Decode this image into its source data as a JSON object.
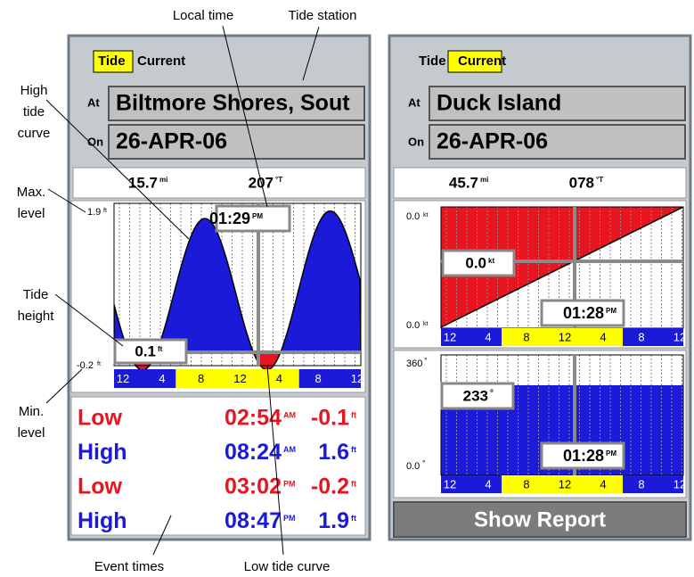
{
  "annotations": {
    "local_time": "Local time",
    "tide_station": "Tide station",
    "high_tide_curve": [
      "High",
      "tide",
      "curve"
    ],
    "max_level": [
      "Max.",
      "level"
    ],
    "tide_height": [
      "Tide",
      "height"
    ],
    "min_level": [
      "Min.",
      "level"
    ],
    "event_times": "Event times",
    "low_tide_curve": "Low tide curve"
  },
  "tide_page": {
    "tabs": [
      "Tide",
      "Current"
    ],
    "at_label": "At",
    "station": "Biltmore Shores, Sout",
    "on_label": "On",
    "date": "26-APR-06",
    "distance": "15.7",
    "distance_unit": "mi",
    "bearing": "207",
    "bearing_unit": "°T",
    "max_level": "1.9",
    "min_level": "-0.2",
    "level_unit": "ft",
    "cursor_time": "01:29",
    "cursor_time_suffix": "PM",
    "cursor_height": "0.1",
    "hours": [
      "12",
      "4",
      "8",
      "12",
      "4",
      "8",
      "12"
    ],
    "events": [
      {
        "type": "Low",
        "time": "02:54",
        "suffix": "AM",
        "height": "-0.1",
        "unit": "ft"
      },
      {
        "type": "High",
        "time": "08:24",
        "suffix": "AM",
        "height": "1.6",
        "unit": "ft"
      },
      {
        "type": "Low",
        "time": "03:02",
        "suffix": "PM",
        "height": "-0.2",
        "unit": "ft"
      },
      {
        "type": "High",
        "time": "08:47",
        "suffix": "PM",
        "height": "1.9",
        "unit": "ft"
      }
    ]
  },
  "current_page": {
    "tabs": [
      "Tide",
      "Current"
    ],
    "at_label": "At",
    "station": "Duck Island",
    "on_label": "On",
    "date": "26-APR-06",
    "distance": "45.7",
    "distance_unit": "mi",
    "bearing": "078",
    "bearing_unit": "°T",
    "speed_max": "0.0",
    "speed_min": "0.0",
    "speed_unit": "kt",
    "cursor_speed": "0.0",
    "cursor_time": "01:28",
    "cursor_time_suffix": "PM",
    "hours": [
      "12",
      "4",
      "8",
      "12",
      "4",
      "8",
      "12"
    ],
    "direction_max": "360",
    "direction_min": "0.0",
    "direction_unit": "°",
    "cursor_direction": "233",
    "button": "Show Report"
  }
}
